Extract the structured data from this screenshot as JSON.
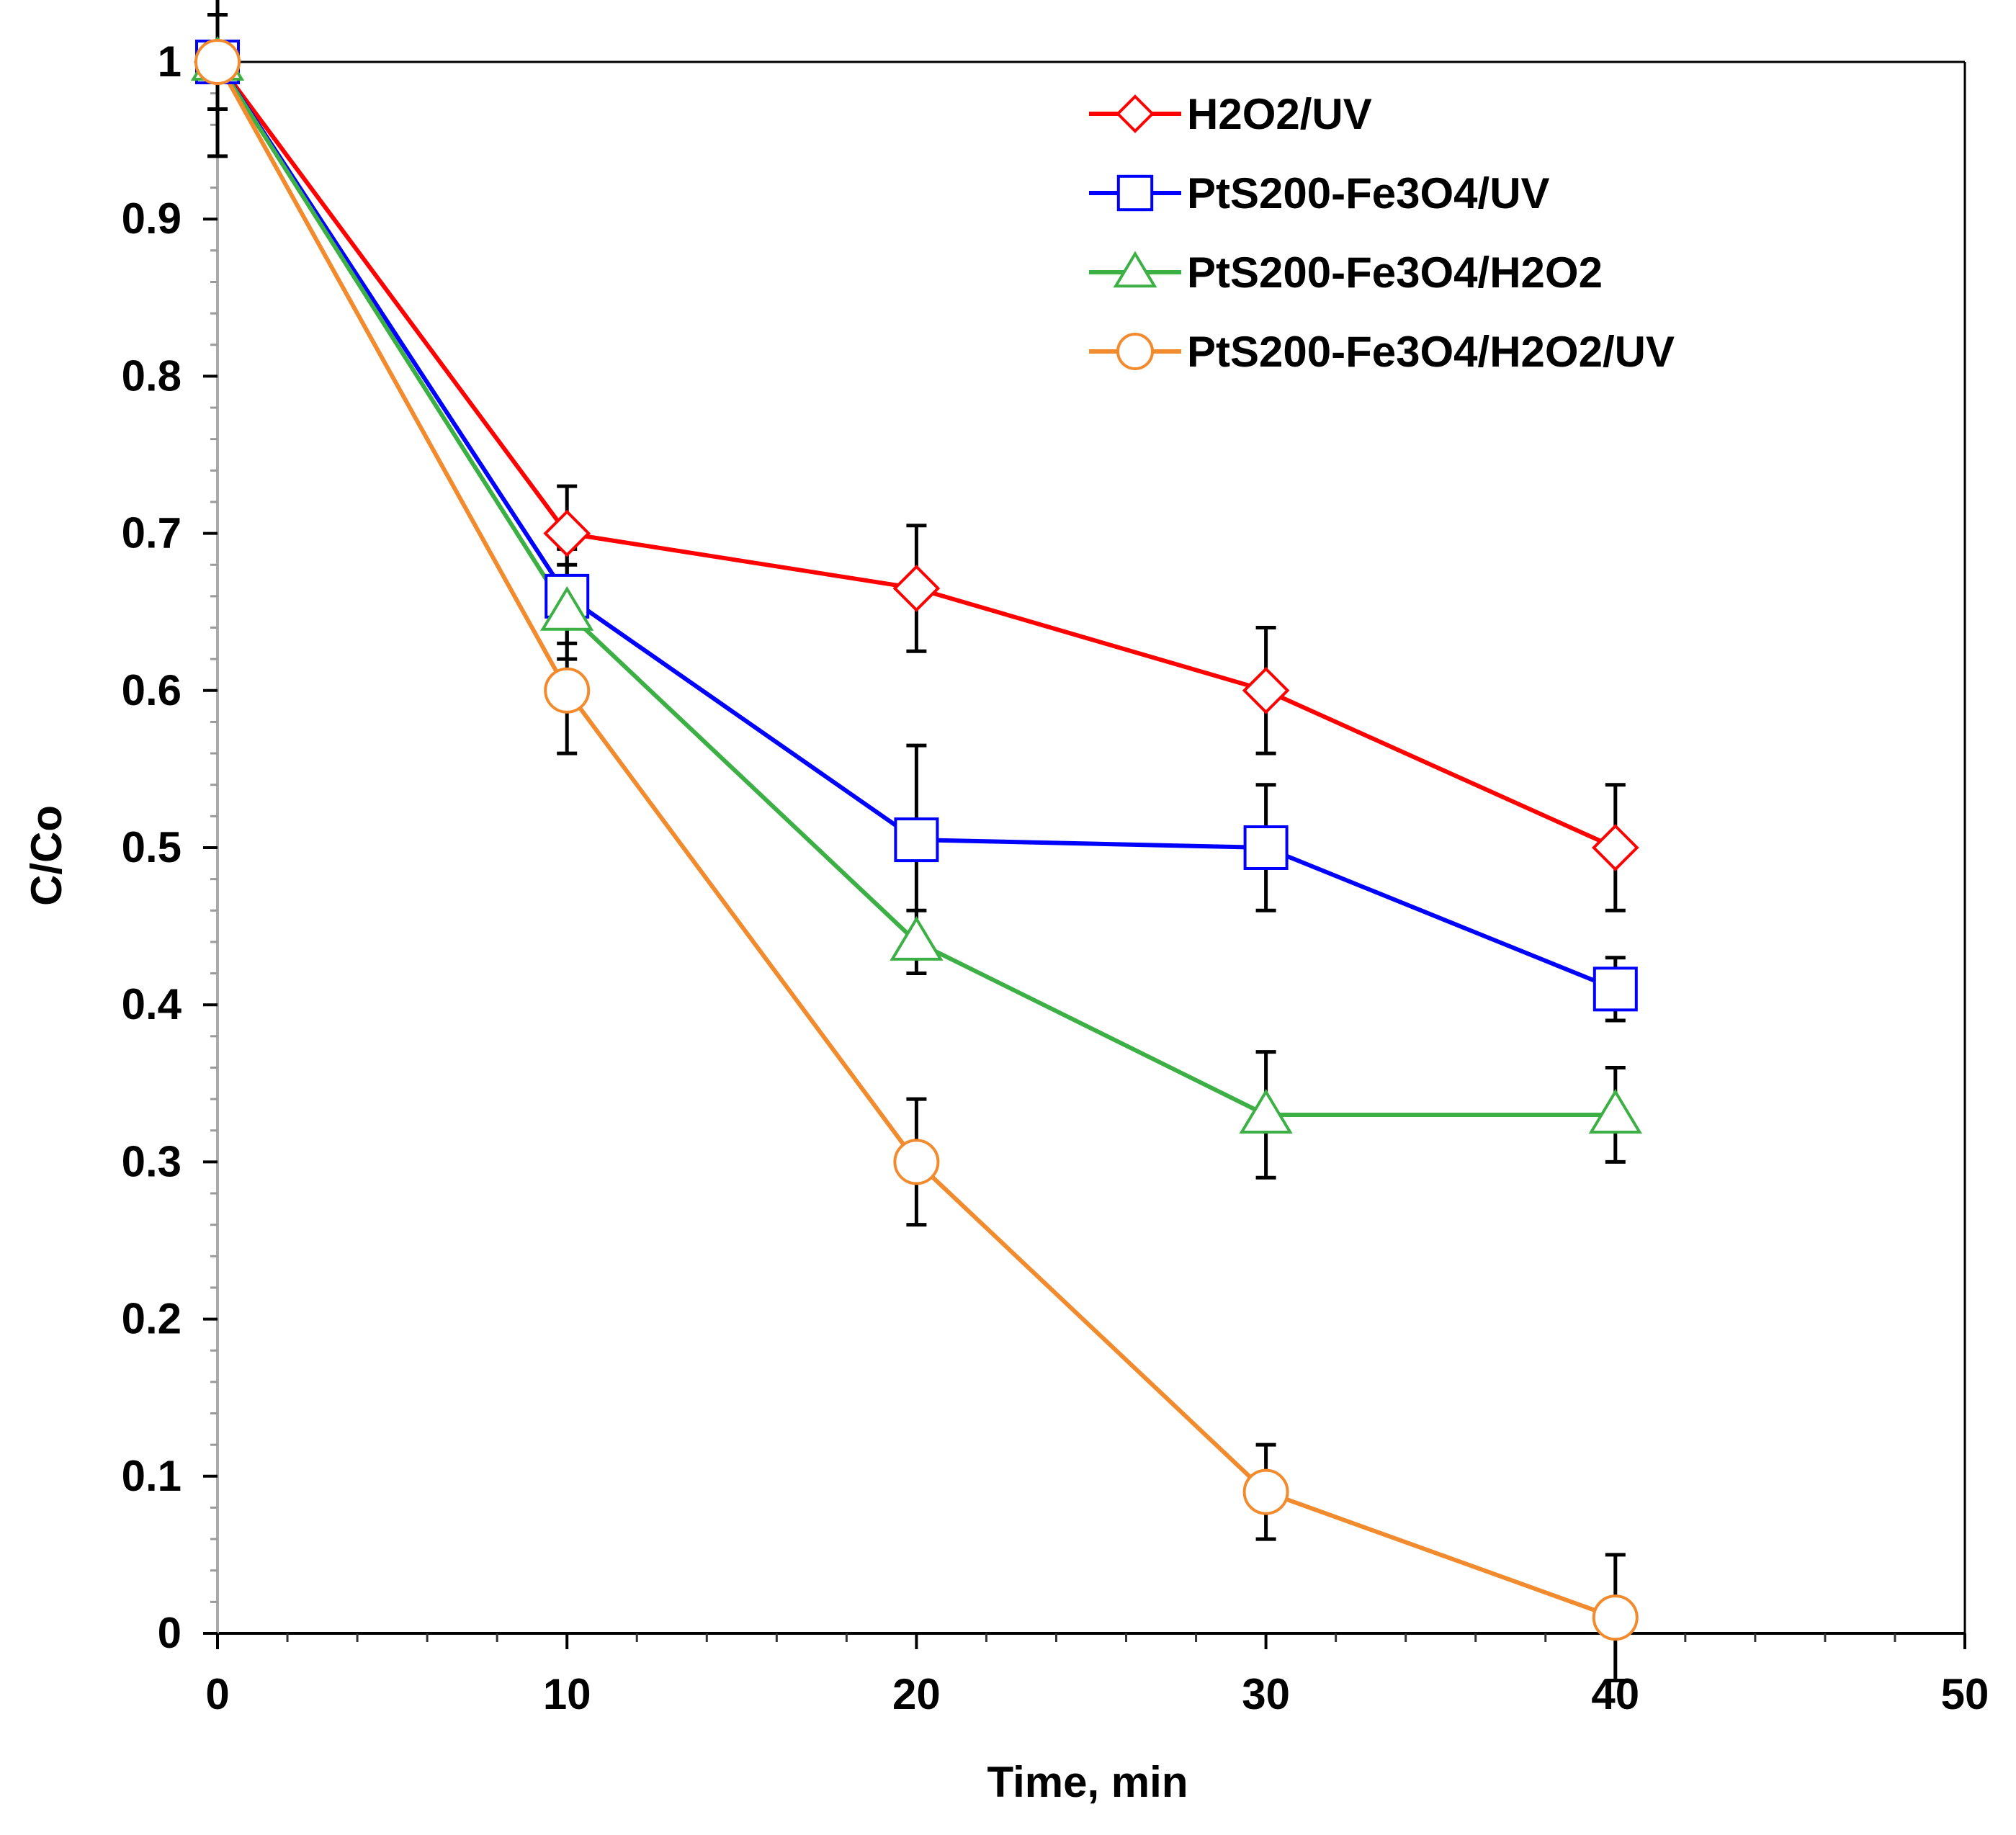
{
  "chart_data": {
    "type": "line",
    "title": "",
    "xlabel": "Time,  min",
    "ylabel": "C/Co",
    "xlim": [
      0,
      50
    ],
    "ylim": [
      0,
      1
    ],
    "xticks": [
      0,
      10,
      20,
      30,
      40,
      50
    ],
    "yticks": [
      0,
      0.1,
      0.2,
      0.3,
      0.4,
      0.5,
      0.6,
      0.7,
      0.8,
      0.9,
      1
    ],
    "xtick_labels": [
      "0",
      "10",
      "20",
      "30",
      "40",
      "50"
    ],
    "ytick_labels": [
      "0",
      "0.1",
      "0.2",
      "0.3",
      "0.4",
      "0.5",
      "0.6",
      "0.7",
      "0.8",
      "0.9",
      "1"
    ],
    "grid": false,
    "legend_position": "top-right",
    "x": [
      0,
      10,
      20,
      30,
      40
    ],
    "series": [
      {
        "name": "H2O2/UV",
        "color": "#ff0000",
        "marker": "diamond",
        "values": [
          1.0,
          0.7,
          0.665,
          0.6,
          0.5
        ],
        "errors": [
          0.06,
          0.03,
          0.04,
          0.04,
          0.04
        ]
      },
      {
        "name": "PtS200-Fe3O4/UV",
        "color": "#0000ff",
        "marker": "square",
        "values": [
          1.0,
          0.66,
          0.505,
          0.5,
          0.41
        ],
        "errors": [
          0.03,
          0.03,
          0.06,
          0.04,
          0.02
        ]
      },
      {
        "name": "PtS200-Fe3O4/H2O2",
        "color": "#3cb044",
        "marker": "triangle",
        "values": [
          1.0,
          0.65,
          0.44,
          0.33,
          0.33
        ],
        "errors": [
          0.03,
          0.03,
          0.02,
          0.04,
          0.03
        ]
      },
      {
        "name": "PtS200-Fe3O4/H2O2/UV",
        "color": "#f28a2e",
        "marker": "circle",
        "values": [
          1.0,
          0.6,
          0.3,
          0.09,
          0.01
        ],
        "errors": [
          0.03,
          0.04,
          0.04,
          0.03,
          0.04
        ]
      }
    ]
  }
}
